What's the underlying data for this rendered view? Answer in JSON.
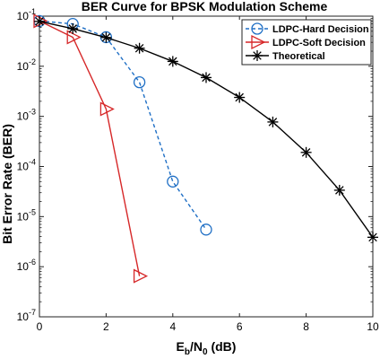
{
  "chart_data": {
    "type": "line",
    "title": "BER Curve for BPSK Modulation Scheme",
    "xlabel_main": "E",
    "xlabel_sub1": "b",
    "xlabel_mid": "/N",
    "xlabel_sub2": "0",
    "xlabel_unit": " (dB)",
    "ylabel": "Bit Error Rate (BER)",
    "xlim": [
      0,
      10
    ],
    "ylim_exp": [
      -7,
      -1
    ],
    "yscale": "log",
    "xticks": [
      0,
      2,
      4,
      6,
      8,
      10
    ],
    "yticks_exp": [
      -7,
      -6,
      -5,
      -4,
      -3,
      -2,
      -1
    ],
    "ytick_base": "10",
    "grid": false,
    "legend_position": "top-right",
    "series": [
      {
        "name": "LDPC-Hard Decision",
        "color": "#1f6fc5",
        "line_style": "dashed",
        "marker": "circle",
        "x": [
          0,
          1,
          2,
          3,
          4,
          5
        ],
        "y": [
          0.08,
          0.07,
          0.038,
          0.0048,
          5e-05,
          5.5e-06
        ]
      },
      {
        "name": "LDPC-Soft Decision",
        "color": "#d62728",
        "line_style": "solid",
        "marker": "triangle-right",
        "x": [
          0,
          1,
          2,
          3
        ],
        "y": [
          0.08,
          0.038,
          0.0014,
          6.5e-07
        ]
      },
      {
        "name": "Theoretical",
        "color": "#000000",
        "line_style": "solid",
        "marker": "asterisk",
        "x": [
          0,
          1,
          2,
          3,
          4,
          5,
          6,
          7,
          8,
          9,
          10
        ],
        "y": [
          0.0786,
          0.0563,
          0.0375,
          0.0229,
          0.0125,
          0.00595,
          0.00239,
          0.000773,
          0.000191,
          3.36e-05,
          3.87e-06
        ]
      }
    ]
  }
}
